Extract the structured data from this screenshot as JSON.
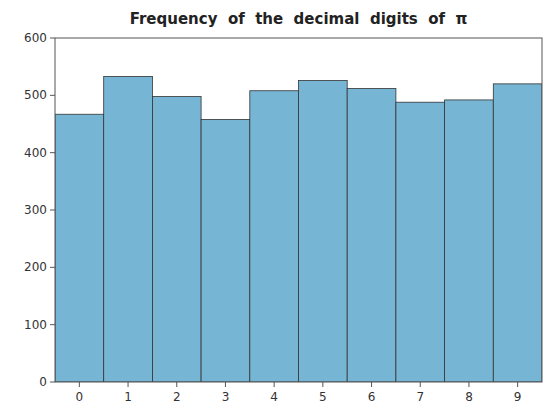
{
  "chart_data": {
    "type": "bar",
    "title": "Frequency  of  the  decimal  digits  of  π",
    "categories": [
      0,
      1,
      2,
      3,
      4,
      5,
      6,
      7,
      8,
      9
    ],
    "values": [
      467,
      533,
      498,
      458,
      508,
      526,
      512,
      488,
      492,
      520
    ],
    "color": "#77b5d4",
    "xlim": [
      -0.5,
      9.5
    ],
    "xticks": [
      0,
      1,
      2,
      3,
      4,
      5,
      6,
      7,
      8,
      9
    ],
    "ylim": [
      0,
      600
    ],
    "yticks": [
      0,
      100,
      200,
      300,
      400,
      500,
      600
    ],
    "grid": false
  }
}
